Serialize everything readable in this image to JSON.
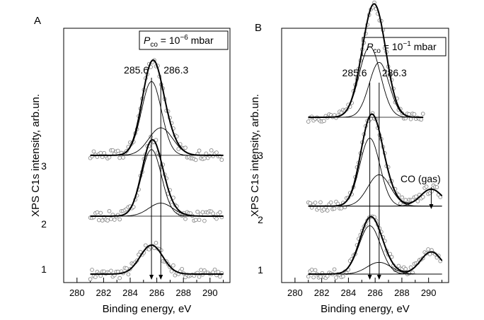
{
  "chart_data": [
    {
      "type": "line",
      "panel": "A",
      "pressure": {
        "P": "P",
        "sub": "co",
        "eq": " = 10",
        "exp": "−6",
        "unit": " mbar"
      },
      "xlabel": "Binding energy, eV",
      "ylabel": "XPS C1s intensity, arb.un.",
      "xlim": [
        279,
        291.5
      ],
      "xticks": [
        "280",
        "282",
        "284",
        "286",
        "288",
        "290"
      ],
      "xtick_values": [
        280,
        282,
        284,
        286,
        288,
        290
      ],
      "peak_markers": [
        {
          "label": "285.6",
          "x": 285.6
        },
        {
          "label": "286.3",
          "x": 286.3
        }
      ],
      "series": [
        {
          "name": "1",
          "baseline": 0,
          "components": [
            {
              "center": 285.6,
              "amplitude": 1.0,
              "width": 0.85
            }
          ],
          "total_amplitude": 1.0
        },
        {
          "name": "2",
          "baseline": 2.0,
          "components": [
            {
              "center": 285.6,
              "amplitude": 2.3,
              "width": 0.75
            },
            {
              "center": 286.3,
              "amplitude": 0.45,
              "width": 0.9
            }
          ]
        },
        {
          "name": "3",
          "baseline": 4.1,
          "components": [
            {
              "center": 285.6,
              "amplitude": 2.55,
              "width": 0.75
            },
            {
              "center": 286.3,
              "amplitude": 0.95,
              "width": 0.9
            }
          ]
        }
      ],
      "curve_labels": [
        "1",
        "2",
        "3"
      ]
    },
    {
      "type": "line",
      "panel": "B",
      "pressure": {
        "P": "P",
        "sub": "co",
        "eq": " = 10",
        "exp": "−1",
        "unit": " mbar"
      },
      "xlabel": "Binding energy, eV",
      "ylabel": "XPS C1s intensity, arb.un.",
      "xlim": [
        279,
        291.5
      ],
      "xticks": [
        "280",
        "282",
        "284",
        "286",
        "288",
        "290"
      ],
      "xtick_values": [
        280,
        282,
        284,
        286,
        288,
        290
      ],
      "peak_markers": [
        {
          "label": "285.6",
          "x": 285.6
        },
        {
          "label": "286.3",
          "x": 286.3
        }
      ],
      "annotation": {
        "text": "CO (gas)",
        "x": 290.2
      },
      "series": [
        {
          "name": "1",
          "baseline": 0,
          "components": [
            {
              "center": 285.6,
              "amplitude": 1.85,
              "width": 0.8
            },
            {
              "center": 286.3,
              "amplitude": 0.45,
              "width": 0.9
            },
            {
              "center": 290.2,
              "amplitude": 0.85,
              "width": 0.8
            }
          ]
        },
        {
          "name": "2",
          "baseline": 2.6,
          "components": [
            {
              "center": 285.6,
              "amplitude": 2.6,
              "width": 0.75
            },
            {
              "center": 286.3,
              "amplitude": 1.2,
              "width": 0.85
            },
            {
              "center": 290.2,
              "amplitude": 0.65,
              "width": 0.8
            }
          ]
        },
        {
          "name": "3",
          "baseline": 6.0,
          "components": [
            {
              "center": 285.6,
              "amplitude": 2.7,
              "width": 0.8
            },
            {
              "center": 286.3,
              "amplitude": 2.1,
              "width": 0.75
            }
          ]
        }
      ],
      "curve_labels": [
        "1",
        "2",
        "3"
      ]
    }
  ]
}
